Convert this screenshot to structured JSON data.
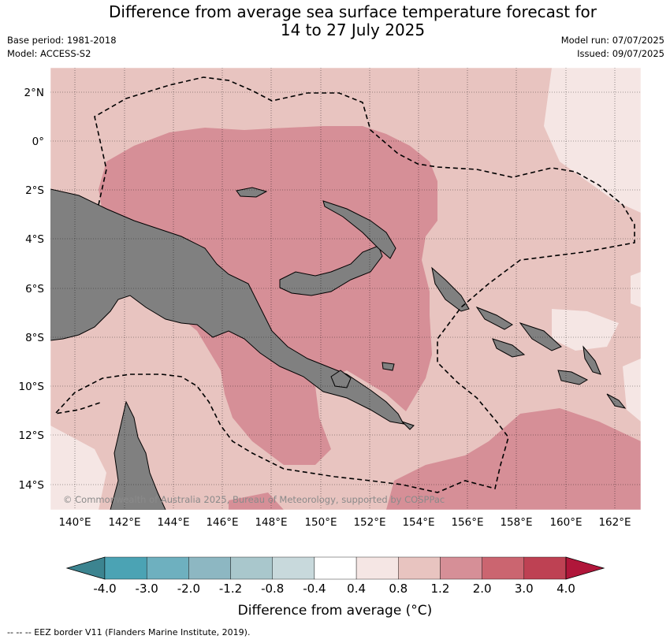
{
  "title_line1": "Difference from average sea surface temperature forecast for",
  "title_line2": "14 to 27 July 2025",
  "base_period": "Base period: 1981-2018",
  "model": "Model: ACCESS-S2",
  "model_run": "Model run: 07/07/2025",
  "issued": "Issued: 09/07/2025",
  "copyright": "© Commonwealth of Australia 2025, Bureau of Meteorology, supported by COSPPac",
  "lat_labels": [
    "2°N",
    "0°",
    "2°S",
    "4°S",
    "6°S",
    "8°S",
    "10°S",
    "12°S",
    "14°S"
  ],
  "lon_labels": [
    "140°E",
    "142°E",
    "144°E",
    "146°E",
    "148°E",
    "150°E",
    "152°E",
    "154°E",
    "156°E",
    "158°E",
    "160°E",
    "162°E"
  ],
  "colorbar": {
    "label": "Difference from average (°C)",
    "ticks": [
      "-4.0",
      "-3.0",
      "-2.0",
      "-1.2",
      "-0.8",
      "-0.4",
      "0.4",
      "0.8",
      "1.2",
      "2.0",
      "3.0",
      "4.0"
    ],
    "colors": [
      "#3c8490",
      "#4ba3b4",
      "#6eb0bf",
      "#8db7c2",
      "#a9c7cc",
      "#c8d9dc",
      "#ffffff",
      "#f5e6e4",
      "#e8c4c0",
      "#d68f97",
      "#cb6570",
      "#be4153",
      "#b0163a"
    ]
  },
  "footnote": "--  --  -- EEZ border V11 (Flanders Marine Institute, 2019)."
}
